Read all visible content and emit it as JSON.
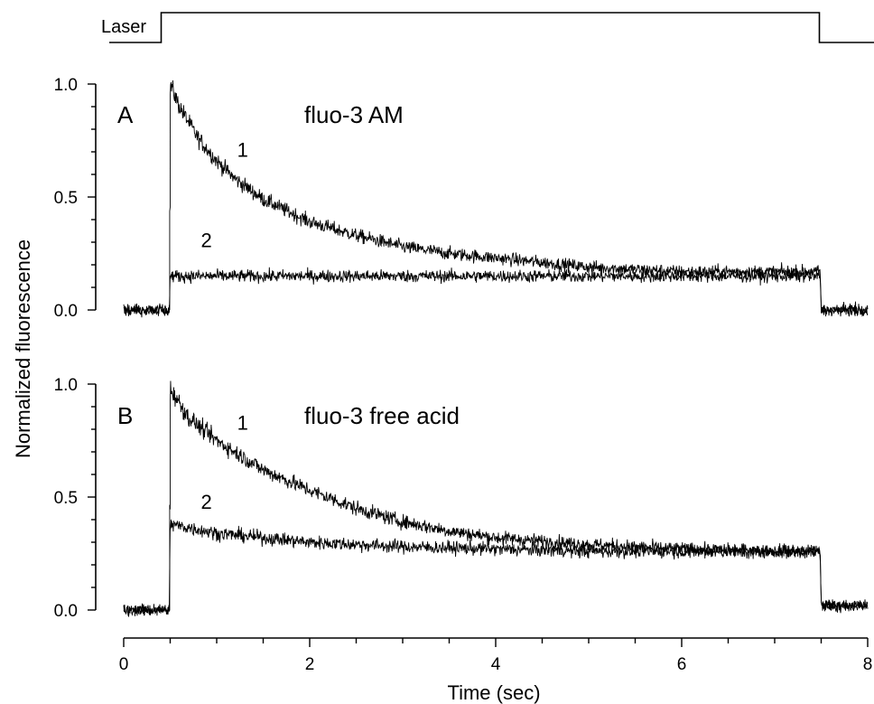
{
  "laser": {
    "label": "Laser",
    "on_time": 0.5,
    "off_time": 7.5
  },
  "x_axis": {
    "label": "Time (sec)",
    "ticks": [
      0,
      2,
      4,
      6,
      8
    ],
    "tick_labels": [
      "0",
      "2",
      "4",
      "6",
      "8"
    ],
    "range": [
      0,
      8
    ]
  },
  "y_axis": {
    "label": "Normalized fluorescence",
    "ticks": [
      0.0,
      0.5,
      1.0
    ],
    "tick_labels": [
      "0.0",
      "0.5",
      "1.0"
    ],
    "range": [
      0,
      1
    ]
  },
  "chart_data": [
    {
      "type": "line",
      "panel": "A",
      "title": "fluo-3 AM",
      "xlabel": "Time (sec)",
      "ylabel": "Normalized fluorescence",
      "xlim": [
        0,
        8
      ],
      "ylim": [
        0,
        1
      ],
      "series": [
        {
          "name": "1",
          "x": [
            0.0,
            0.49,
            0.5,
            0.6,
            0.8,
            1.0,
            1.2,
            1.5,
            2.0,
            2.5,
            3.0,
            3.5,
            4.0,
            5.0,
            6.0,
            7.0,
            7.49,
            7.5,
            8.0
          ],
          "y": [
            0.0,
            0.0,
            1.0,
            0.9,
            0.76,
            0.66,
            0.58,
            0.49,
            0.39,
            0.33,
            0.28,
            0.25,
            0.23,
            0.19,
            0.17,
            0.17,
            0.17,
            0.0,
            0.0
          ]
        },
        {
          "name": "2",
          "x": [
            0.0,
            0.49,
            0.5,
            1.0,
            2.0,
            3.0,
            4.0,
            5.0,
            6.0,
            7.0,
            7.49,
            7.5,
            8.0
          ],
          "y": [
            0.0,
            0.0,
            0.15,
            0.15,
            0.15,
            0.15,
            0.15,
            0.15,
            0.15,
            0.15,
            0.15,
            0.0,
            0.0
          ]
        }
      ],
      "annotations": [
        {
          "text": "1",
          "x": 1.22,
          "y": 0.71
        },
        {
          "text": "2",
          "x": 0.83,
          "y": 0.31
        }
      ]
    },
    {
      "type": "line",
      "panel": "B",
      "title": "fluo-3 free acid",
      "xlabel": "Time (sec)",
      "ylabel": "Normalized fluorescence",
      "xlim": [
        0,
        8
      ],
      "ylim": [
        0,
        1
      ],
      "series": [
        {
          "name": "1",
          "x": [
            0.0,
            0.49,
            0.5,
            0.7,
            1.0,
            1.5,
            2.0,
            2.5,
            3.0,
            3.5,
            4.0,
            5.0,
            6.0,
            7.0,
            7.49,
            7.5,
            8.0
          ],
          "y": [
            0.0,
            0.0,
            0.98,
            0.85,
            0.75,
            0.62,
            0.53,
            0.45,
            0.39,
            0.35,
            0.32,
            0.29,
            0.27,
            0.26,
            0.26,
            0.02,
            0.02
          ]
        },
        {
          "name": "2",
          "x": [
            0.0,
            0.49,
            0.5,
            1.0,
            2.0,
            3.0,
            4.0,
            5.0,
            6.0,
            7.0,
            7.49,
            7.5,
            8.0
          ],
          "y": [
            0.0,
            0.0,
            0.38,
            0.34,
            0.3,
            0.28,
            0.27,
            0.26,
            0.26,
            0.26,
            0.26,
            0.02,
            0.02
          ]
        }
      ],
      "annotations": [
        {
          "text": "1",
          "x": 1.22,
          "y": 0.83
        },
        {
          "text": "2",
          "x": 0.83,
          "y": 0.48
        }
      ]
    }
  ]
}
